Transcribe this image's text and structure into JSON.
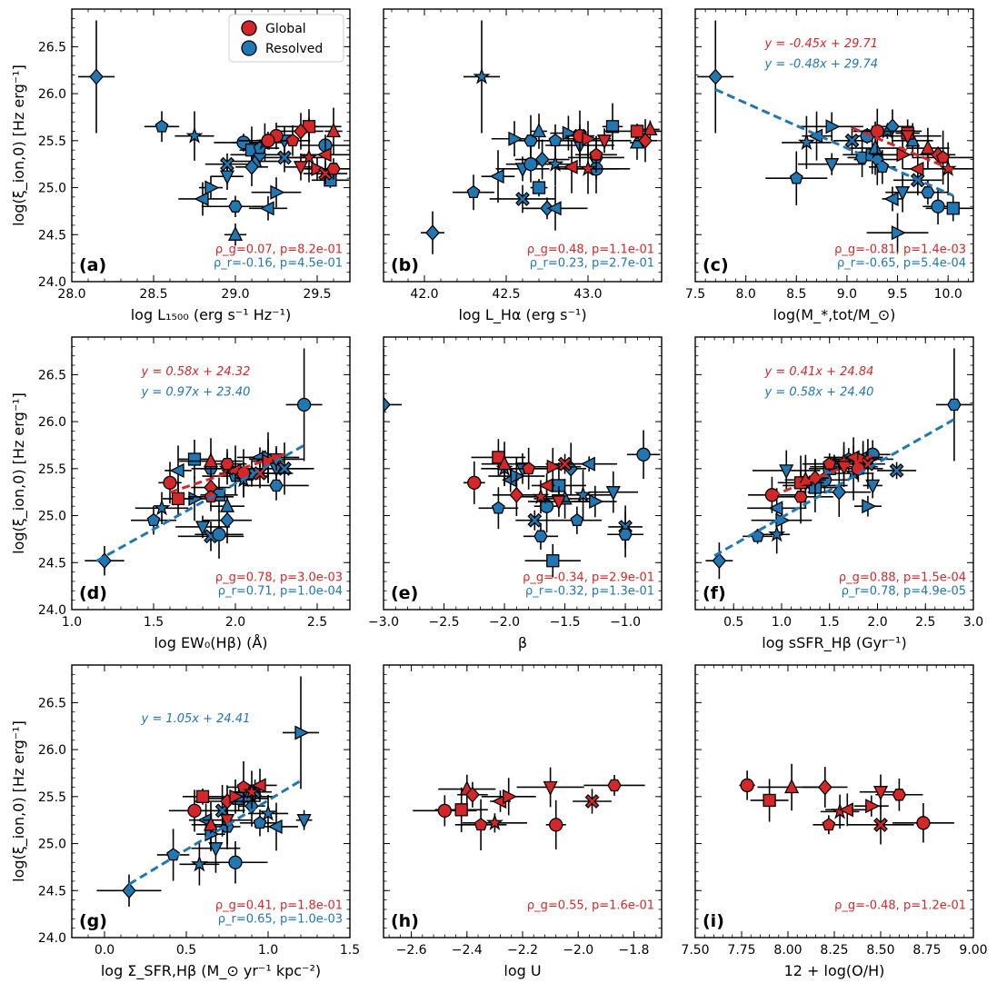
{
  "figure": {
    "colors": {
      "global": "#d62728",
      "resolved": "#1f77b4"
    },
    "legend": {
      "global_label": "Global",
      "resolved_label": "Resolved"
    },
    "ylabel": "log(ξ_ion,0) [Hz erg⁻¹]",
    "ylim": [
      24.0,
      26.9
    ],
    "yticks": [
      "24.0",
      "24.5",
      "25.0",
      "25.5",
      "26.0",
      "26.5"
    ]
  },
  "chart_data": [
    {
      "type": "scatter",
      "panel_label": "(a)",
      "xlabel": "log L₁₅₀₀ (erg s⁻¹ Hz⁻¹)",
      "xlim": [
        28.0,
        29.7
      ],
      "xticks": [
        "28.0",
        "28.5",
        "29.0",
        "29.5"
      ],
      "xtick_values": [
        28.0,
        28.5,
        29.0,
        29.5
      ],
      "stats": [
        "ρ_g=0.07, p=8.2e-01",
        "ρ_r=-0.16, p=4.5e-01"
      ],
      "fits": [],
      "global": [
        [
          29.25,
          25.55
        ],
        [
          29.45,
          25.65
        ],
        [
          29.6,
          25.6
        ],
        [
          29.4,
          25.6
        ],
        [
          29.35,
          25.5
        ],
        [
          29.45,
          25.32
        ],
        [
          29.55,
          25.35
        ],
        [
          29.5,
          25.2
        ],
        [
          29.4,
          25.22
        ],
        [
          29.55,
          25.15
        ],
        [
          29.6,
          25.2
        ],
        [
          29.2,
          25.5
        ]
      ],
      "resolved": [
        [
          28.15,
          26.18
        ],
        [
          28.55,
          25.65
        ],
        [
          28.75,
          25.55
        ],
        [
          28.8,
          24.88
        ],
        [
          28.85,
          25.0
        ],
        [
          28.95,
          25.12
        ],
        [
          28.95,
          25.25
        ],
        [
          29.0,
          24.8
        ],
        [
          29.05,
          25.48
        ],
        [
          29.1,
          25.4
        ],
        [
          29.12,
          25.28
        ],
        [
          29.15,
          25.35
        ],
        [
          29.15,
          25.42
        ],
        [
          29.18,
          25.48
        ],
        [
          29.2,
          24.78
        ],
        [
          29.25,
          24.95
        ],
        [
          29.3,
          25.5
        ],
        [
          29.3,
          25.32
        ],
        [
          29.45,
          25.65
        ],
        [
          29.55,
          25.45
        ],
        [
          29.58,
          25.08
        ],
        [
          29.0,
          24.5
        ],
        [
          29.1,
          25.22
        ]
      ]
    },
    {
      "type": "scatter",
      "panel_label": "(b)",
      "xlabel": "log L_Hα (erg s⁻¹)",
      "xlim": [
        41.75,
        43.45
      ],
      "xticks": [
        "42.0",
        "42.5",
        "43.0"
      ],
      "xtick_values": [
        42.0,
        42.5,
        43.0
      ],
      "stats": [
        "ρ_g=0.48, p=1.1e-01",
        "ρ_r=0.23, p=2.7e-01"
      ],
      "fits": [],
      "global": [
        [
          42.95,
          25.55
        ],
        [
          43.3,
          25.6
        ],
        [
          43.38,
          25.62
        ],
        [
          43.35,
          25.5
        ],
        [
          43.05,
          25.35
        ],
        [
          43.0,
          25.2
        ],
        [
          42.9,
          25.22
        ],
        [
          43.0,
          25.52
        ],
        [
          43.1,
          25.5
        ]
      ],
      "resolved": [
        [
          42.05,
          24.52
        ],
        [
          42.3,
          24.95
        ],
        [
          42.35,
          26.18
        ],
        [
          42.45,
          25.12
        ],
        [
          42.55,
          25.52
        ],
        [
          42.6,
          25.2
        ],
        [
          42.6,
          24.88
        ],
        [
          42.65,
          25.5
        ],
        [
          42.65,
          25.25
        ],
        [
          42.7,
          25.0
        ],
        [
          42.7,
          25.6
        ],
        [
          42.75,
          24.78
        ],
        [
          42.8,
          25.5
        ],
        [
          42.8,
          25.25
        ],
        [
          42.8,
          24.78
        ],
        [
          42.88,
          25.58
        ],
        [
          42.95,
          25.45
        ],
        [
          42.95,
          25.55
        ],
        [
          43.05,
          25.32
        ],
        [
          43.05,
          25.2
        ],
        [
          43.15,
          25.65
        ],
        [
          43.3,
          25.48
        ],
        [
          42.72,
          25.3
        ]
      ]
    },
    {
      "type": "scatter",
      "panel_label": "(c)",
      "xlabel": "log(M_*,tot/M_⊙)",
      "xlim": [
        7.5,
        10.25
      ],
      "xticks": [
        "7.5",
        "8.0",
        "8.5",
        "9.0",
        "9.5",
        "10.0"
      ],
      "xtick_values": [
        7.5,
        8.0,
        8.5,
        9.0,
        9.5,
        10.0
      ],
      "stats": [
        "ρ_g=-0.81, p=1.4e-03",
        "ρ_r=-0.65, p=5.4e-04"
      ],
      "fits": [
        {
          "label": "y = -0.45x + 29.71",
          "slope": -0.45,
          "intercept": 29.71,
          "x0": 9.05,
          "x1": 10.05,
          "series": "global"
        },
        {
          "label": "y = -0.48x + 29.74",
          "slope": -0.48,
          "intercept": 29.74,
          "x0": 7.7,
          "x1": 10.05,
          "series": "resolved"
        }
      ],
      "global": [
        [
          9.3,
          25.6
        ],
        [
          9.6,
          25.58
        ],
        [
          9.8,
          25.42
        ],
        [
          9.9,
          25.35
        ],
        [
          9.95,
          25.32
        ],
        [
          10.0,
          25.2
        ],
        [
          9.7,
          25.2
        ],
        [
          9.55,
          25.35
        ],
        [
          9.6,
          25.55
        ]
      ],
      "resolved": [
        [
          7.7,
          26.18
        ],
        [
          8.5,
          25.1
        ],
        [
          8.6,
          25.48
        ],
        [
          8.7,
          25.55
        ],
        [
          8.85,
          25.65
        ],
        [
          8.85,
          25.25
        ],
        [
          9.05,
          25.5
        ],
        [
          9.15,
          25.32
        ],
        [
          9.2,
          25.55
        ],
        [
          9.25,
          25.35
        ],
        [
          9.28,
          25.42
        ],
        [
          9.3,
          25.3
        ],
        [
          9.35,
          25.22
        ],
        [
          9.4,
          25.6
        ],
        [
          9.45,
          24.88
        ],
        [
          9.5,
          24.52
        ],
        [
          9.55,
          24.95
        ],
        [
          9.7,
          25.08
        ],
        [
          9.8,
          24.95
        ],
        [
          9.9,
          24.8
        ],
        [
          10.05,
          24.78
        ],
        [
          9.65,
          25.5
        ],
        [
          9.45,
          25.65
        ]
      ]
    },
    {
      "type": "scatter",
      "panel_label": "(d)",
      "xlabel": "log EW₀(Hβ) (Å)",
      "xlim": [
        1.0,
        2.7
      ],
      "xticks": [
        "1.0",
        "1.5",
        "2.0",
        "2.5"
      ],
      "xtick_values": [
        1.0,
        1.5,
        2.0,
        2.5
      ],
      "stats": [
        "ρ_g=0.78, p=3.0e-03",
        "ρ_r=0.71, p=1.0e-04"
      ],
      "fits": [
        {
          "label": "y = 0.58x + 24.32",
          "slope": 0.58,
          "intercept": 24.32,
          "x0": 1.6,
          "x1": 2.3,
          "series": "global"
        },
        {
          "label": "y = 0.97x + 23.40",
          "slope": 0.97,
          "intercept": 23.4,
          "x0": 1.15,
          "x1": 2.42,
          "series": "resolved"
        }
      ],
      "global": [
        [
          1.6,
          25.35
        ],
        [
          1.65,
          25.18
        ],
        [
          1.85,
          25.58
        ],
        [
          1.85,
          25.3
        ],
        [
          1.85,
          25.2
        ],
        [
          1.95,
          25.5
        ],
        [
          2.0,
          25.48
        ],
        [
          2.2,
          25.58
        ],
        [
          2.25,
          25.6
        ],
        [
          2.15,
          25.45
        ],
        [
          1.95,
          25.55
        ],
        [
          2.05,
          25.45
        ]
      ],
      "resolved": [
        [
          1.2,
          24.52
        ],
        [
          1.5,
          24.95
        ],
        [
          1.55,
          25.08
        ],
        [
          1.65,
          25.48
        ],
        [
          1.75,
          25.18
        ],
        [
          1.8,
          24.88
        ],
        [
          1.85,
          24.78
        ],
        [
          1.85,
          25.5
        ],
        [
          1.9,
          24.8
        ],
        [
          1.9,
          25.22
        ],
        [
          1.95,
          25.1
        ],
        [
          1.95,
          24.95
        ],
        [
          2.0,
          25.42
        ],
        [
          2.05,
          25.38
        ],
        [
          2.15,
          25.62
        ],
        [
          2.2,
          25.62
        ],
        [
          2.25,
          25.5
        ],
        [
          2.3,
          25.5
        ],
        [
          2.25,
          25.32
        ],
        [
          2.42,
          26.18
        ],
        [
          1.75,
          25.6
        ],
        [
          2.1,
          25.45
        ]
      ]
    },
    {
      "type": "scatter",
      "panel_label": "(e)",
      "xlabel": "β",
      "xlim": [
        -3.0,
        -0.7
      ],
      "xticks": [
        "−3.0",
        "−2.5",
        "−2.0",
        "−1.5",
        "−1.0"
      ],
      "xtick_values": [
        -3.0,
        -2.5,
        -2.0,
        -1.5,
        -1.0
      ],
      "stats": [
        "ρ_g=-0.34, p=2.9e-01",
        "ρ_r=-0.32, p=1.3e-01"
      ],
      "fits": [],
      "global": [
        [
          -2.25,
          25.35
        ],
        [
          -2.05,
          25.62
        ],
        [
          -2.0,
          25.55
        ],
        [
          -1.9,
          25.22
        ],
        [
          -1.8,
          25.5
        ],
        [
          -1.7,
          25.2
        ],
        [
          -1.65,
          25.32
        ],
        [
          -1.6,
          25.52
        ],
        [
          -1.55,
          25.15
        ],
        [
          -1.5,
          25.55
        ]
      ],
      "resolved": [
        [
          -3.0,
          26.18
        ],
        [
          -2.05,
          25.08
        ],
        [
          -2.0,
          25.5
        ],
        [
          -1.95,
          25.38
        ],
        [
          -1.9,
          25.42
        ],
        [
          -1.85,
          25.5
        ],
        [
          -1.75,
          24.95
        ],
        [
          -1.7,
          24.78
        ],
        [
          -1.65,
          25.1
        ],
        [
          -1.6,
          24.52
        ],
        [
          -1.5,
          25.18
        ],
        [
          -1.45,
          25.5
        ],
        [
          -1.4,
          24.95
        ],
        [
          -1.35,
          25.22
        ],
        [
          -1.3,
          25.55
        ],
        [
          -1.25,
          25.15
        ],
        [
          -1.1,
          25.25
        ],
        [
          -1.0,
          24.88
        ],
        [
          -1.0,
          24.8
        ],
        [
          -0.85,
          25.65
        ],
        [
          -1.55,
          25.32
        ]
      ]
    },
    {
      "type": "scatter",
      "panel_label": "(f)",
      "xlabel": "log sSFR_Hβ (Gyr⁻¹)",
      "xlim": [
        0.1,
        3.0
      ],
      "xticks": [
        "0.5",
        "1.0",
        "1.5",
        "2.0",
        "2.5",
        "3.0"
      ],
      "xtick_values": [
        0.5,
        1.0,
        1.5,
        2.0,
        2.5,
        3.0
      ],
      "stats": [
        "ρ_g=0.88, p=1.5e-04",
        "ρ_r=0.78, p=4.9e-05"
      ],
      "fits": [
        {
          "label": "y = 0.41x + 24.84",
          "slope": 0.41,
          "intercept": 24.84,
          "x0": 0.9,
          "x1": 1.95,
          "series": "global"
        },
        {
          "label": "y = 0.58x + 24.40",
          "slope": 0.58,
          "intercept": 24.4,
          "x0": 0.3,
          "x1": 2.8,
          "series": "resolved"
        }
      ],
      "global": [
        [
          0.9,
          25.22
        ],
        [
          1.2,
          25.35
        ],
        [
          1.25,
          25.38
        ],
        [
          1.35,
          25.4
        ],
        [
          1.5,
          25.55
        ],
        [
          1.65,
          25.58
        ],
        [
          1.75,
          25.62
        ],
        [
          1.85,
          25.6
        ],
        [
          1.65,
          25.52
        ],
        [
          1.9,
          25.55
        ],
        [
          1.2,
          25.2
        ],
        [
          1.8,
          25.5
        ]
      ],
      "resolved": [
        [
          0.35,
          24.52
        ],
        [
          0.75,
          24.78
        ],
        [
          0.95,
          24.8
        ],
        [
          0.95,
          25.08
        ],
        [
          1.0,
          24.95
        ],
        [
          1.05,
          25.48
        ],
        [
          1.25,
          25.35
        ],
        [
          1.35,
          25.32
        ],
        [
          1.45,
          25.38
        ],
        [
          1.5,
          25.5
        ],
        [
          1.55,
          25.55
        ],
        [
          1.6,
          25.25
        ],
        [
          1.7,
          25.6
        ],
        [
          1.75,
          25.45
        ],
        [
          1.85,
          25.62
        ],
        [
          1.9,
          25.1
        ],
        [
          1.95,
          25.32
        ],
        [
          2.2,
          25.48
        ],
        [
          2.8,
          26.18
        ],
        [
          1.95,
          25.65
        ],
        [
          1.35,
          25.3
        ]
      ]
    },
    {
      "type": "scatter",
      "panel_label": "(g)",
      "xlabel": "log Σ_SFR,Hβ (M_⊙ yr⁻¹ kpc⁻²)",
      "xlim": [
        -0.2,
        1.5
      ],
      "xticks": [
        "0.0",
        "0.5",
        "1.0",
        "1.5"
      ],
      "xtick_values": [
        0.0,
        0.5,
        1.0,
        1.5
      ],
      "stats": [
        "ρ_g=0.41, p=1.8e-01",
        "ρ_r=0.65, p=1.0e-03"
      ],
      "fits": [
        {
          "label": "y = 1.05x + 24.41",
          "slope": 1.05,
          "intercept": 24.41,
          "x0": 0.15,
          "x1": 1.2,
          "series": "resolved"
        }
      ],
      "global": [
        [
          0.55,
          25.35
        ],
        [
          0.6,
          25.5
        ],
        [
          0.65,
          25.2
        ],
        [
          0.75,
          25.45
        ],
        [
          0.85,
          25.6
        ],
        [
          0.9,
          25.55
        ],
        [
          0.95,
          25.62
        ],
        [
          0.8,
          25.5
        ],
        [
          0.75,
          25.25
        ]
      ],
      "resolved": [
        [
          0.15,
          24.5
        ],
        [
          0.42,
          24.88
        ],
        [
          0.58,
          24.78
        ],
        [
          0.62,
          25.25
        ],
        [
          0.65,
          25.1
        ],
        [
          0.68,
          24.95
        ],
        [
          0.72,
          25.35
        ],
        [
          0.75,
          25.18
        ],
        [
          0.8,
          24.8
        ],
        [
          0.82,
          25.48
        ],
        [
          0.88,
          25.5
        ],
        [
          0.9,
          25.4
        ],
        [
          0.95,
          25.22
        ],
        [
          1.0,
          25.32
        ],
        [
          1.05,
          25.18
        ],
        [
          1.2,
          26.18
        ],
        [
          1.22,
          25.25
        ],
        [
          0.92,
          25.55
        ]
      ]
    },
    {
      "type": "scatter",
      "panel_label": "(h)",
      "xlabel": "log U",
      "xlim": [
        -2.7,
        -1.7
      ],
      "xticks": [
        "−2.6",
        "−2.4",
        "−2.2",
        "−2.0",
        "−1.8"
      ],
      "xtick_values": [
        -2.6,
        -2.4,
        -2.2,
        -2.0,
        -1.8
      ],
      "stats": [
        "ρ_g=0.55, p=1.6e-01"
      ],
      "fits": [],
      "global": [
        [
          -2.48,
          25.35
        ],
        [
          -2.42,
          25.36
        ],
        [
          -2.4,
          25.58
        ],
        [
          -2.38,
          25.52
        ],
        [
          -2.35,
          25.2
        ],
        [
          -2.3,
          25.22
        ],
        [
          -2.28,
          25.45
        ],
        [
          -2.25,
          25.5
        ],
        [
          -2.1,
          25.6
        ],
        [
          -1.95,
          25.45
        ],
        [
          -1.87,
          25.62
        ],
        [
          -2.08,
          25.2
        ]
      ],
      "resolved": []
    },
    {
      "type": "scatter",
      "panel_label": "(i)",
      "xlabel": "12 + log(O/H)",
      "xlim": [
        7.5,
        9.0
      ],
      "xticks": [
        "7.50",
        "7.75",
        "8.00",
        "8.25",
        "8.50",
        "8.75",
        "9.00"
      ],
      "xtick_values": [
        7.5,
        7.75,
        8.0,
        8.25,
        8.5,
        8.75,
        9.0
      ],
      "stats": [
        "ρ_g=-0.48, p=1.2e-01"
      ],
      "fits": [],
      "global": [
        [
          7.78,
          25.62
        ],
        [
          7.9,
          25.46
        ],
        [
          8.02,
          25.6
        ],
        [
          8.2,
          25.6
        ],
        [
          8.22,
          25.2
        ],
        [
          8.28,
          25.34
        ],
        [
          8.32,
          25.36
        ],
        [
          8.45,
          25.4
        ],
        [
          8.5,
          25.55
        ],
        [
          8.5,
          25.2
        ],
        [
          8.6,
          25.52
        ],
        [
          8.73,
          25.22
        ]
      ],
      "resolved": []
    }
  ]
}
